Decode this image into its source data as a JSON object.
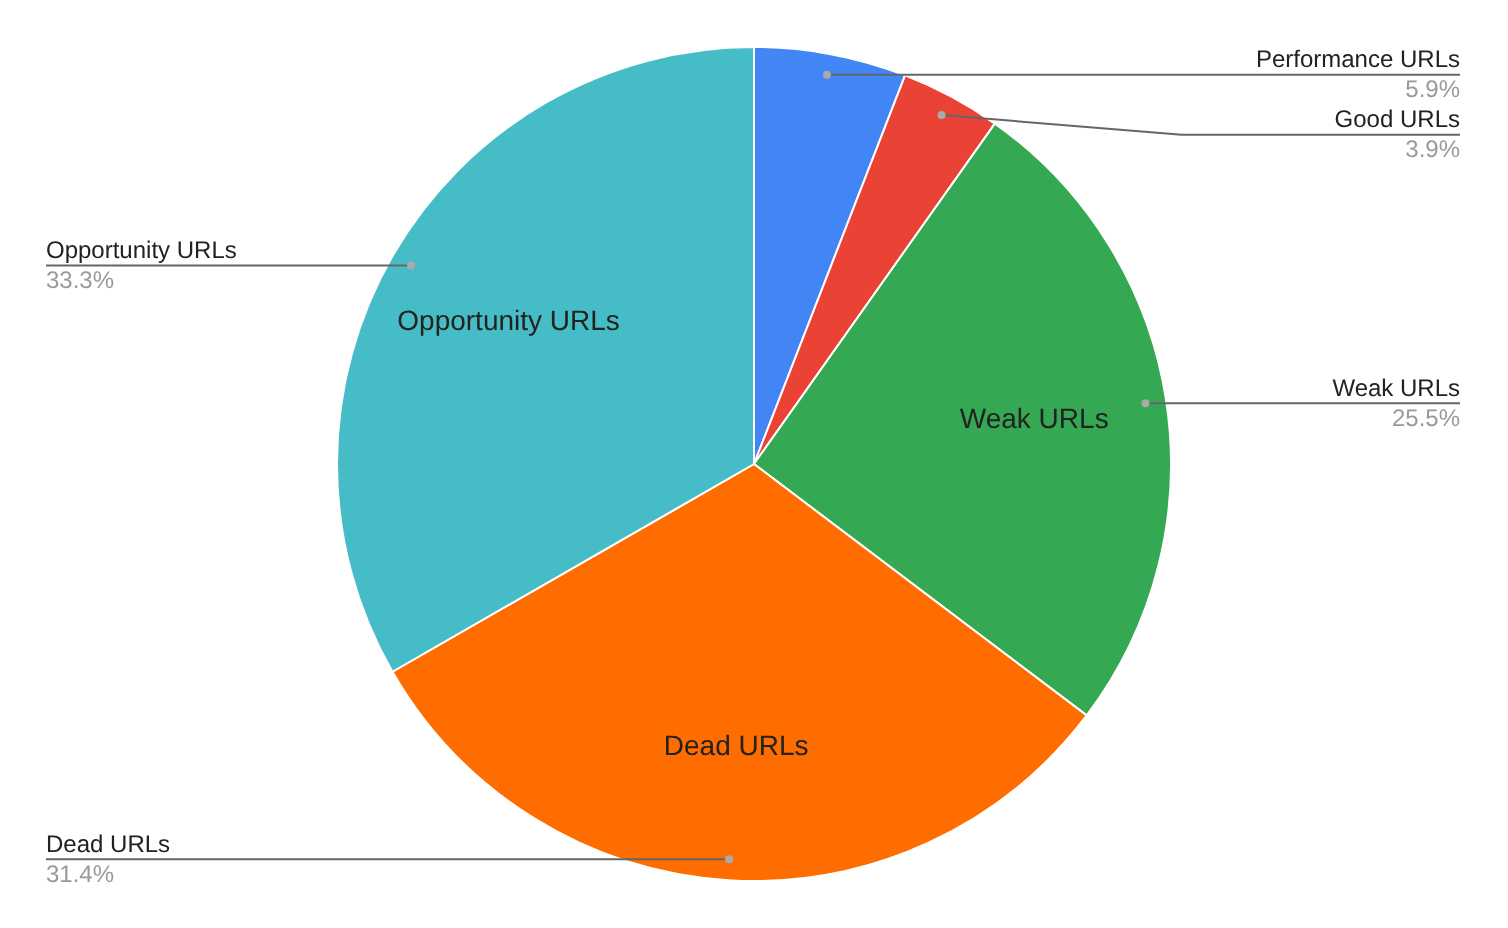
{
  "chart_data": {
    "type": "pie",
    "categories": [
      "Performance URLs",
      "Good URLs",
      "Weak URLs",
      "Dead URLs",
      "Opportunity URLs"
    ],
    "values": [
      5.9,
      3.9,
      25.5,
      31.4,
      33.3
    ],
    "colors": [
      "#4285f4",
      "#ea4335",
      "#34a853",
      "#ff6d01",
      "#46bdc6"
    ],
    "value_labels": [
      "5.9%",
      "3.9%",
      "25.5%",
      "31.4%",
      "33.3%"
    ],
    "legend": false
  }
}
